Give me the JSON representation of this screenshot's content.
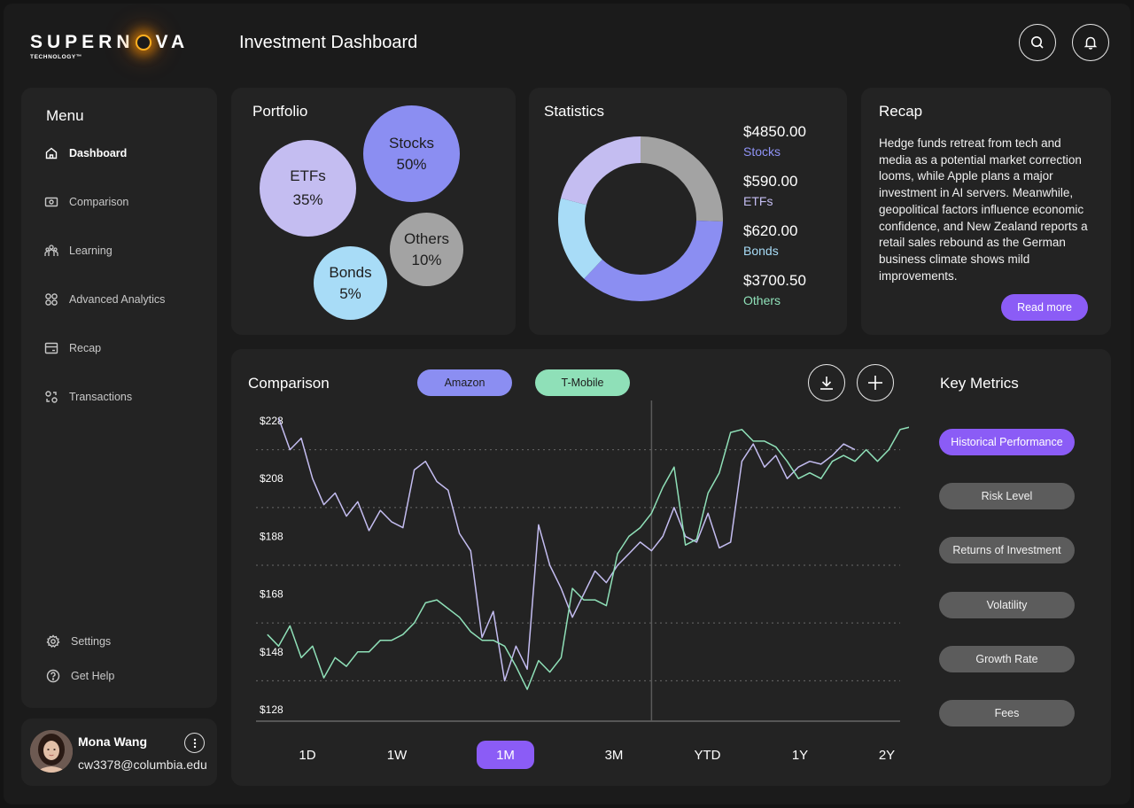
{
  "app": {
    "logo_text": "SUPERN",
    "logo_text_end": "VA",
    "logo_subtitle": "TECHNOLOGY™",
    "title": "Investment Dashboard"
  },
  "header": {
    "search_icon": "search-icon",
    "bell_icon": "bell-icon"
  },
  "sidebar": {
    "title": "Menu",
    "items": [
      {
        "label": "Dashboard",
        "icon": "home-icon",
        "active": true
      },
      {
        "label": "Comparison",
        "icon": "banknote-icon",
        "active": false
      },
      {
        "label": "Learning",
        "icon": "people-icon",
        "active": false
      },
      {
        "label": "Advanced Analytics",
        "icon": "grid-icon",
        "active": false
      },
      {
        "label": "Recap",
        "icon": "card-icon",
        "active": false
      },
      {
        "label": "Transactions",
        "icon": "transactions-icon",
        "active": false
      }
    ],
    "bottom_items": [
      {
        "label": "Settings",
        "icon": "gear-icon"
      },
      {
        "label": "Get Help",
        "icon": "help-icon"
      }
    ]
  },
  "user": {
    "name": "Mona Wang",
    "email": "cw3378@columbia.edu"
  },
  "portfolio": {
    "title": "Portfolio",
    "bubbles": [
      {
        "name": "ETFs",
        "percent": "35%",
        "color": "#c4bdf1"
      },
      {
        "name": "Stocks",
        "percent": "50%",
        "color": "#8b8ef2"
      },
      {
        "name": "Others",
        "percent": "10%",
        "color": "#a3a3a3"
      },
      {
        "name": "Bonds",
        "percent": "5%",
        "color": "#a8dcf7"
      }
    ]
  },
  "statistics": {
    "title": "Statistics",
    "items": [
      {
        "value": "$4850.00",
        "label": "Stocks",
        "color": "#8f93f5"
      },
      {
        "value": "$590.00",
        "label": "ETFs",
        "color": "#c4bdf1"
      },
      {
        "value": "$620.00",
        "label": "Bonds",
        "color": "#a8dcf7"
      },
      {
        "value": "$3700.50",
        "label": "Others",
        "color": "#8fe0b8"
      }
    ],
    "donut_segments": [
      {
        "name": "Others",
        "fraction": 0.255,
        "color": "#a3a3a3"
      },
      {
        "name": "Stocks",
        "fraction": 0.365,
        "color": "#8b8ef2"
      },
      {
        "name": "Bonds",
        "fraction": 0.17,
        "color": "#a8dcf7"
      },
      {
        "name": "ETFs",
        "fraction": 0.21,
        "color": "#c4bdf1"
      }
    ]
  },
  "recap": {
    "title": "Recap",
    "text": "Hedge funds retreat from tech and media as a potential market correction looms, while Apple plans a major investment in AI servers. Meanwhile, geopolitical factors influence economic confidence, and New Zealand reports a retail sales rebound as the German business climate shows mild improvements.",
    "read_more": "Read more"
  },
  "comparison": {
    "title": "Comparison",
    "legend": [
      {
        "label": "Amazon",
        "color": "#8b8ef2"
      },
      {
        "label": "T-Mobile",
        "color": "#8fe0b8"
      }
    ],
    "time_ranges": [
      "1D",
      "1W",
      "1M",
      "3M",
      "YTD",
      "1Y",
      "2Y"
    ],
    "active_range": "1M"
  },
  "key_metrics": {
    "title": "Key Metrics",
    "items": [
      "Historical Performance",
      "Risk Level",
      "Returns of Investment",
      "Volatility",
      "Growth Rate",
      "Fees"
    ],
    "active": "Historical Performance"
  },
  "chart_data": {
    "type": "line",
    "title": "Comparison",
    "xlabel": "",
    "ylabel": "",
    "ylim": [
      124,
      232
    ],
    "y_ticks": [
      "$228",
      "$208",
      "$188",
      "$168",
      "$148",
      "$128"
    ],
    "y_tick_values": [
      228,
      208,
      188,
      168,
      148,
      128
    ],
    "x_range": [
      0,
      57
    ],
    "marker_x": 35,
    "series": [
      {
        "name": "Amazon",
        "color": "#c4bdf1",
        "start_x": 2,
        "values": [
          229,
          218,
          222,
          208,
          199,
          203,
          195,
          200,
          190,
          197,
          193,
          191,
          211,
          214,
          207,
          204,
          189,
          183,
          153,
          162,
          138,
          150,
          142,
          192,
          178,
          170,
          160,
          168,
          176,
          172,
          178,
          182,
          186,
          183,
          188,
          198,
          188,
          186,
          196,
          184,
          186,
          214,
          220,
          212,
          216,
          208,
          212,
          214,
          213,
          216,
          220,
          218
        ]
      },
      {
        "name": "T-Mobile",
        "color": "#8fe0b8",
        "start_x": 1,
        "values": [
          154,
          150,
          157,
          146,
          150,
          139,
          146,
          143,
          148,
          148,
          152,
          152,
          154,
          158,
          165,
          166,
          163,
          160,
          155,
          152,
          152,
          150,
          143,
          135,
          145,
          141,
          146,
          170,
          166,
          166,
          164,
          182,
          188,
          191,
          196,
          205,
          212,
          185,
          187,
          203,
          210,
          224,
          225,
          221,
          221,
          219,
          214,
          208,
          210,
          208,
          214,
          216,
          214,
          218,
          214,
          218,
          225,
          226
        ]
      }
    ]
  }
}
